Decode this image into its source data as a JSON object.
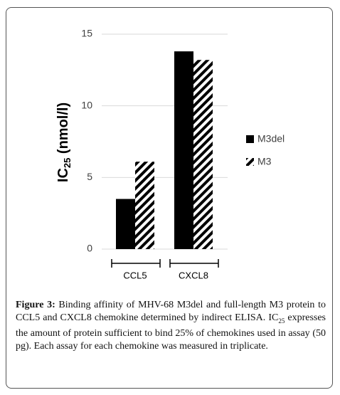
{
  "chart_data": {
    "type": "bar",
    "y_label": [
      "IC",
      "25",
      " (nmol/l)"
    ],
    "categories": [
      "CCL5",
      "CXCL8"
    ],
    "series": [
      {
        "name": "M3del",
        "color": "#000000",
        "hatch": false,
        "values": [
          3.5,
          13.8
        ]
      },
      {
        "name": "M3",
        "color": "#000000",
        "hatch": true,
        "values": [
          6.1,
          13.2
        ]
      }
    ],
    "ylim": [
      0,
      15
    ],
    "yticks": [
      0,
      5,
      10,
      15
    ],
    "grid": true,
    "legend": "right"
  },
  "caption": {
    "label": "Figure 3:",
    "text": [
      " Binding affinity of MHV-68 M3del and full-length M3 protein to CCL5 and CXCL8 chemokine determined by indirect ELISA. IC",
      "25",
      " expresses the amount of protein sufficient to bind 25% of chemokines used in assay (50 pg). Each assay for each chemokine was measured in triplicate."
    ]
  }
}
